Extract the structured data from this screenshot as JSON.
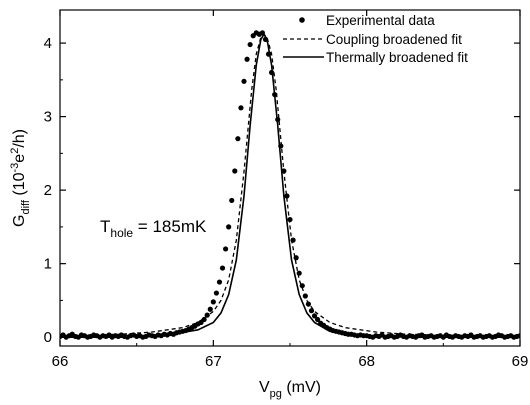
{
  "chart_data": {
    "type": "scatter",
    "title": "",
    "xlabel": {
      "main": "V",
      "sub": "pg",
      "suffix": " (mV)"
    },
    "ylabel": {
      "main": "G",
      "sub": "diff",
      "suffix_pre": " (10",
      "sup1": "-3",
      "suffix_mid": "e",
      "sup2": "2",
      "suffix_post": "/h)"
    },
    "xlim": [
      66,
      69
    ],
    "ylim": [
      -0.12,
      4.45
    ],
    "xticks": [
      66,
      67,
      68,
      69
    ],
    "xtick_labels": [
      "66",
      "67",
      "68",
      "69"
    ],
    "yticks": [
      0,
      1,
      2,
      3,
      4
    ],
    "ytick_labels": [
      "0",
      "1",
      "2",
      "3",
      "4"
    ],
    "grid": false,
    "legend_position": "top-right",
    "annotation": {
      "main": "T",
      "sub": "hole",
      "rest": " = 185mK"
    },
    "peak": {
      "center_mV": 67.33,
      "height": 4.12
    },
    "series": [
      {
        "name": "Experimental data",
        "style": "markers",
        "x": [
          66.0,
          66.02,
          66.04,
          66.06,
          66.08,
          66.1,
          66.12,
          66.14,
          66.16,
          66.18,
          66.2,
          66.22,
          66.24,
          66.26,
          66.28,
          66.3,
          66.32,
          66.34,
          66.36,
          66.38,
          66.4,
          66.42,
          66.44,
          66.46,
          66.48,
          66.5,
          66.52,
          66.54,
          66.56,
          66.58,
          66.6,
          66.62,
          66.64,
          66.66,
          66.68,
          66.7,
          66.72,
          66.74,
          66.76,
          66.78,
          66.8,
          66.82,
          66.84,
          66.86,
          66.88,
          66.9,
          66.92,
          66.94,
          66.96,
          66.98,
          67.0,
          67.02,
          67.04,
          67.06,
          67.08,
          67.1,
          67.12,
          67.14,
          67.16,
          67.18,
          67.2,
          67.22,
          67.24,
          67.26,
          67.28,
          67.3,
          67.32,
          67.34,
          67.36,
          67.38,
          67.4,
          67.42,
          67.44,
          67.46,
          67.48,
          67.5,
          67.52,
          67.54,
          67.56,
          67.58,
          67.6,
          67.62,
          67.64,
          67.66,
          67.68,
          67.7,
          67.72,
          67.74,
          67.76,
          67.78,
          67.8,
          67.82,
          67.84,
          67.86,
          67.88,
          67.9,
          67.92,
          67.94,
          67.96,
          67.98,
          68.0,
          68.02,
          68.04,
          68.06,
          68.08,
          68.1,
          68.12,
          68.14,
          68.16,
          68.18,
          68.2,
          68.22,
          68.24,
          68.26,
          68.28,
          68.3,
          68.32,
          68.34,
          68.36,
          68.38,
          68.4,
          68.42,
          68.44,
          68.46,
          68.48,
          68.5,
          68.52,
          68.54,
          68.56,
          68.58,
          68.6,
          68.62,
          68.64,
          68.66,
          68.68,
          68.7,
          68.72,
          68.74,
          68.76,
          68.78,
          68.8,
          68.82,
          68.84,
          68.86,
          68.88,
          68.9,
          68.92,
          68.94,
          68.96,
          68.98,
          69.0
        ],
        "y": [
          0.01,
          0.03,
          0.0,
          0.02,
          0.04,
          0.01,
          0.0,
          0.03,
          0.02,
          0.0,
          0.01,
          0.03,
          0.02,
          0.0,
          0.02,
          0.01,
          0.03,
          0.0,
          0.02,
          0.01,
          0.03,
          0.01,
          0.0,
          0.02,
          0.03,
          0.01,
          0.02,
          0.0,
          0.01,
          0.03,
          0.02,
          0.01,
          0.03,
          0.02,
          0.04,
          0.03,
          0.05,
          0.04,
          0.06,
          0.07,
          0.08,
          0.09,
          0.11,
          0.13,
          0.15,
          0.18,
          0.2,
          0.24,
          0.3,
          0.38,
          0.48,
          0.6,
          0.75,
          0.94,
          1.2,
          1.5,
          1.86,
          2.26,
          2.7,
          3.12,
          3.48,
          3.78,
          3.98,
          4.1,
          4.14,
          4.12,
          4.14,
          4.05,
          3.85,
          3.6,
          3.3,
          2.96,
          2.6,
          2.26,
          1.92,
          1.6,
          1.32,
          1.08,
          0.87,
          0.7,
          0.56,
          0.45,
          0.36,
          0.29,
          0.24,
          0.19,
          0.16,
          0.13,
          0.11,
          0.09,
          0.08,
          0.07,
          0.06,
          0.05,
          0.04,
          0.04,
          0.03,
          0.02,
          0.03,
          0.02,
          0.02,
          0.01,
          0.0,
          0.02,
          0.01,
          0.03,
          0.0,
          0.01,
          0.02,
          0.0,
          0.01,
          0.03,
          0.01,
          0.0,
          0.02,
          0.01,
          0.0,
          0.02,
          0.03,
          0.0,
          0.01,
          0.02,
          0.0,
          0.01,
          0.02,
          0.0,
          0.03,
          0.01,
          0.0,
          0.02,
          0.01,
          0.0,
          0.02,
          0.01,
          0.03,
          0.0,
          0.01,
          0.02,
          0.0,
          0.01,
          0.02,
          0.0,
          0.01,
          0.03,
          0.02,
          0.0,
          0.01,
          0.02,
          0.0,
          0.01,
          0.02
        ]
      },
      {
        "name": "Coupling broadened fit",
        "style": "dashed",
        "x": [
          66.0,
          66.2,
          66.4,
          66.6,
          66.8,
          66.9,
          67.0,
          67.05,
          67.1,
          67.15,
          67.2,
          67.25,
          67.28,
          67.31,
          67.33,
          67.35,
          67.38,
          67.41,
          67.46,
          67.51,
          67.56,
          67.61,
          67.66,
          67.76,
          67.86,
          68.06,
          68.26,
          68.46,
          68.66,
          68.86,
          69.0
        ],
        "y": [
          0.02,
          0.03,
          0.04,
          0.07,
          0.13,
          0.2,
          0.35,
          0.5,
          0.78,
          1.32,
          2.25,
          3.36,
          3.85,
          4.08,
          4.12,
          4.08,
          3.85,
          3.36,
          2.25,
          1.32,
          0.78,
          0.5,
          0.35,
          0.2,
          0.13,
          0.07,
          0.04,
          0.03,
          0.02,
          0.02,
          0.02
        ]
      },
      {
        "name": "Thermally broadened fit",
        "style": "solid",
        "x": [
          66.0,
          66.4,
          66.7,
          66.9,
          67.0,
          67.05,
          67.1,
          67.15,
          67.2,
          67.24,
          67.28,
          67.31,
          67.33,
          67.35,
          67.38,
          67.42,
          67.46,
          67.51,
          67.56,
          67.61,
          67.66,
          67.76,
          67.96,
          68.3,
          68.7,
          69.0
        ],
        "y": [
          0.0,
          0.0,
          0.03,
          0.1,
          0.2,
          0.33,
          0.58,
          1.05,
          1.92,
          2.88,
          3.7,
          4.05,
          4.12,
          4.05,
          3.7,
          2.88,
          1.92,
          1.05,
          0.58,
          0.33,
          0.2,
          0.08,
          0.02,
          0.0,
          0.0,
          0.0
        ]
      }
    ]
  }
}
